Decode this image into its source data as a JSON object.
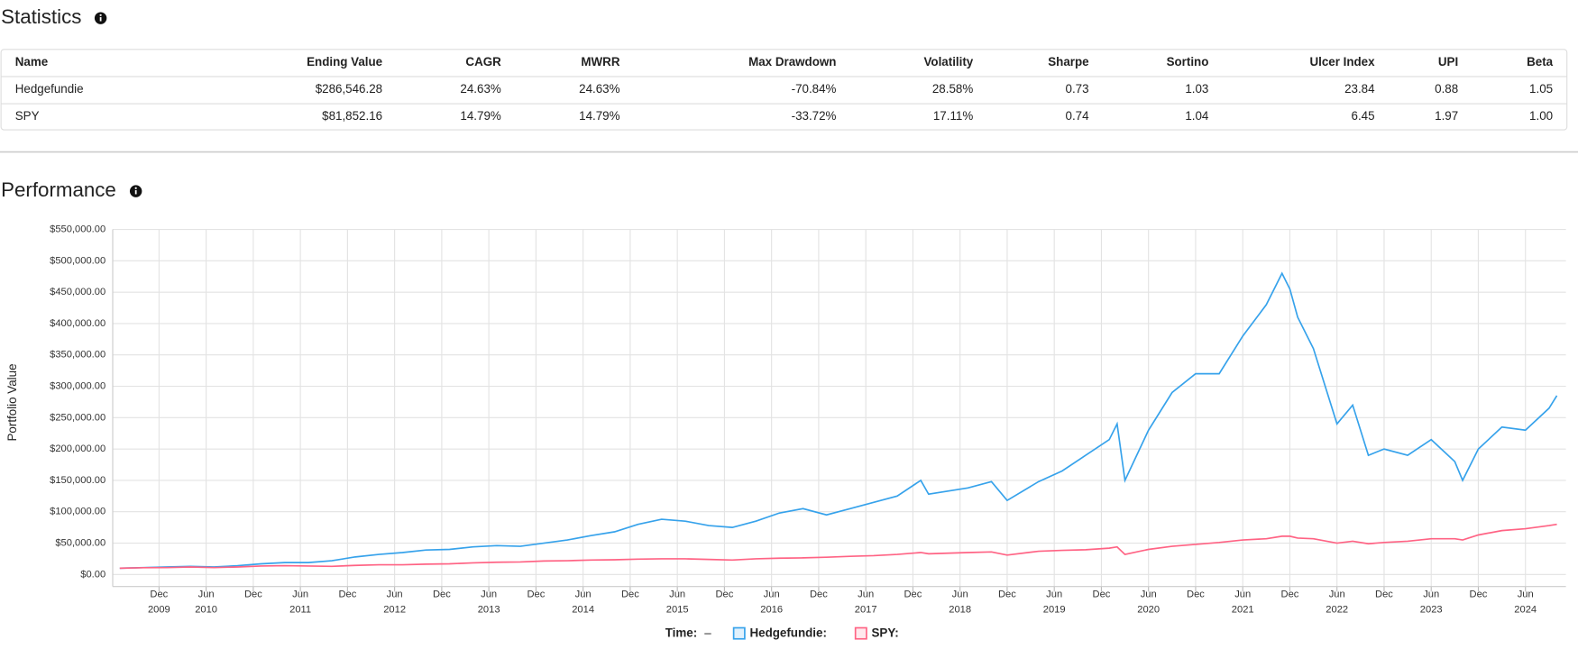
{
  "statistics": {
    "title": "Statistics",
    "headers": [
      "Name",
      "Ending Value",
      "CAGR",
      "MWRR",
      "Max Drawdown",
      "Volatility",
      "Sharpe",
      "Sortino",
      "Ulcer Index",
      "UPI",
      "Beta"
    ],
    "rows": [
      [
        "Hedgefundie",
        "$286,546.28",
        "24.63%",
        "24.63%",
        "-70.84%",
        "28.58%",
        "0.73",
        "1.03",
        "23.84",
        "0.88",
        "1.05"
      ],
      [
        "SPY",
        "$81,852.16",
        "14.79%",
        "14.79%",
        "-33.72%",
        "17.11%",
        "0.74",
        "1.04",
        "6.45",
        "1.97",
        "1.00"
      ]
    ]
  },
  "chart_data": {
    "type": "line",
    "title": "Performance",
    "y_label": "Portfolio Value",
    "legend_time": {
      "label": "Time:",
      "value": "–"
    },
    "grid": true,
    "x": [
      "2009-07",
      "2009-10",
      "2010-01",
      "2010-04",
      "2010-07",
      "2010-10",
      "2011-01",
      "2011-04",
      "2011-07",
      "2011-10",
      "2012-01",
      "2012-04",
      "2012-07",
      "2012-10",
      "2013-01",
      "2013-04",
      "2013-07",
      "2013-10",
      "2014-01",
      "2014-04",
      "2014-07",
      "2014-10",
      "2015-01",
      "2015-04",
      "2015-07",
      "2015-10",
      "2016-01",
      "2016-04",
      "2016-07",
      "2016-10",
      "2017-01",
      "2017-04",
      "2017-07",
      "2017-10",
      "2018-01",
      "2018-02",
      "2018-07",
      "2018-10",
      "2018-12",
      "2019-04",
      "2019-07",
      "2019-10",
      "2020-01",
      "2020-02",
      "2020-03",
      "2020-06",
      "2020-09",
      "2020-12",
      "2021-03",
      "2021-06",
      "2021-09",
      "2021-11",
      "2021-12",
      "2022-01",
      "2022-03",
      "2022-06",
      "2022-08",
      "2022-10",
      "2022-12",
      "2023-03",
      "2023-06",
      "2023-09",
      "2023-10",
      "2023-12",
      "2024-03",
      "2024-06",
      "2024-09",
      "2024-10"
    ],
    "series": [
      {
        "name": "Hedgefundie",
        "legend_label": "Hedgefundie:",
        "color": "#36a2eb",
        "values": [
          10000,
          11000,
          12000,
          13000,
          12000,
          14000,
          17000,
          19000,
          19000,
          22000,
          28000,
          32000,
          35000,
          39000,
          40000,
          44000,
          46000,
          45000,
          50000,
          55000,
          62000,
          68000,
          80000,
          88000,
          85000,
          78000,
          75000,
          85000,
          98000,
          105000,
          95000,
          105000,
          115000,
          125000,
          150000,
          128000,
          138000,
          148000,
          118000,
          148000,
          165000,
          190000,
          215000,
          240000,
          150000,
          230000,
          290000,
          320000,
          320000,
          380000,
          430000,
          480000,
          455000,
          410000,
          360000,
          240000,
          270000,
          190000,
          200000,
          190000,
          215000,
          180000,
          150000,
          200000,
          235000,
          230000,
          265000,
          285000
        ]
      },
      {
        "name": "SPY",
        "legend_label": "SPY:",
        "color": "#ff6384",
        "values": [
          10000,
          10800,
          11000,
          12000,
          11000,
          12000,
          13500,
          14000,
          13500,
          13000,
          14500,
          15500,
          15500,
          16500,
          17000,
          18500,
          19500,
          20000,
          21500,
          22000,
          23000,
          23500,
          24500,
          25000,
          25000,
          24000,
          23000,
          25000,
          26000,
          26500,
          27500,
          29000,
          30000,
          32000,
          35000,
          33000,
          35000,
          36000,
          31000,
          37000,
          38500,
          39500,
          42000,
          44000,
          32000,
          40000,
          45000,
          48000,
          51000,
          55000,
          57000,
          61000,
          61000,
          58000,
          57000,
          50000,
          53000,
          49000,
          51000,
          53000,
          57000,
          57000,
          55000,
          63000,
          70000,
          73000,
          78000,
          80000
        ]
      }
    ],
    "xlim": [
      "2009-07",
      "2024-10"
    ],
    "xticks": [
      {
        "value": "2009-12",
        "label": "Dec",
        "year": "2009"
      },
      {
        "value": "2010-06",
        "label": "Jun",
        "year": "2010"
      },
      {
        "value": "2010-12",
        "label": "Dec"
      },
      {
        "value": "2011-06",
        "label": "Jun",
        "year": "2011"
      },
      {
        "value": "2011-12",
        "label": "Dec"
      },
      {
        "value": "2012-06",
        "label": "Jun",
        "year": "2012"
      },
      {
        "value": "2012-12",
        "label": "Dec"
      },
      {
        "value": "2013-06",
        "label": "Jun",
        "year": "2013"
      },
      {
        "value": "2013-12",
        "label": "Dec"
      },
      {
        "value": "2014-06",
        "label": "Jun",
        "year": "2014"
      },
      {
        "value": "2014-12",
        "label": "Dec"
      },
      {
        "value": "2015-06",
        "label": "Jun",
        "year": "2015"
      },
      {
        "value": "2015-12",
        "label": "Dec"
      },
      {
        "value": "2016-06",
        "label": "Jun",
        "year": "2016"
      },
      {
        "value": "2016-12",
        "label": "Dec"
      },
      {
        "value": "2017-06",
        "label": "Jun",
        "year": "2017"
      },
      {
        "value": "2017-12",
        "label": "Dec"
      },
      {
        "value": "2018-06",
        "label": "Jun",
        "year": "2018"
      },
      {
        "value": "2018-12",
        "label": "Dec"
      },
      {
        "value": "2019-06",
        "label": "Jun",
        "year": "2019"
      },
      {
        "value": "2019-12",
        "label": "Dec"
      },
      {
        "value": "2020-06",
        "label": "Jun",
        "year": "2020"
      },
      {
        "value": "2020-12",
        "label": "Dec"
      },
      {
        "value": "2021-06",
        "label": "Jun",
        "year": "2021"
      },
      {
        "value": "2021-12",
        "label": "Dec"
      },
      {
        "value": "2022-06",
        "label": "Jun",
        "year": "2022"
      },
      {
        "value": "2022-12",
        "label": "Dec"
      },
      {
        "value": "2023-06",
        "label": "Jun",
        "year": "2023"
      },
      {
        "value": "2023-12",
        "label": "Dec"
      },
      {
        "value": "2024-06",
        "label": "Jun",
        "year": "2024"
      }
    ],
    "ylim": [
      0,
      550000
    ],
    "yticks": [
      {
        "value": 0,
        "label": "$0.00"
      },
      {
        "value": 50000,
        "label": "$50,000.00"
      },
      {
        "value": 100000,
        "label": "$100,000.00"
      },
      {
        "value": 150000,
        "label": "$150,000.00"
      },
      {
        "value": 200000,
        "label": "$200,000.00"
      },
      {
        "value": 250000,
        "label": "$250,000.00"
      },
      {
        "value": 300000,
        "label": "$300,000.00"
      },
      {
        "value": 350000,
        "label": "$350,000.00"
      },
      {
        "value": 400000,
        "label": "$400,000.00"
      },
      {
        "value": 450000,
        "label": "$450,000.00"
      },
      {
        "value": 500000,
        "label": "$500,000.00"
      },
      {
        "value": 550000,
        "label": "$550,000.00"
      }
    ]
  }
}
